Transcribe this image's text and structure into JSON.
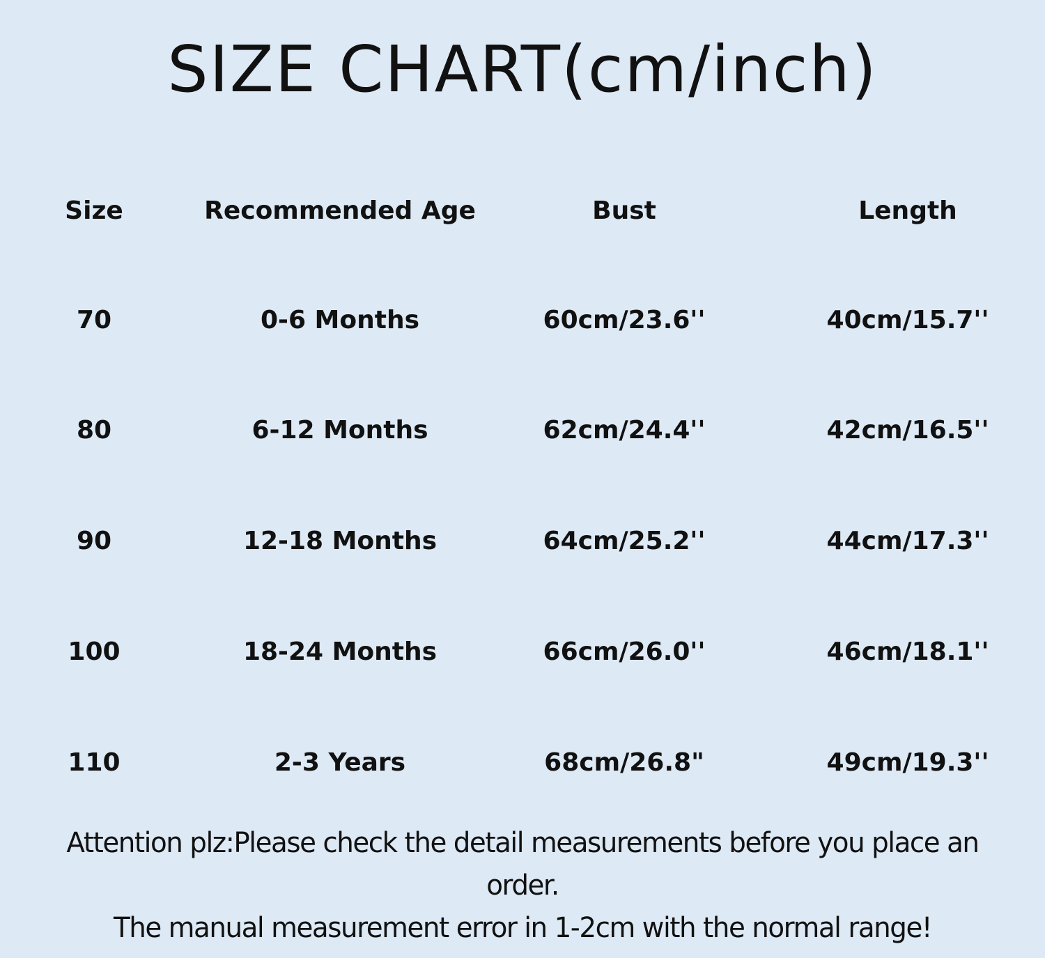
{
  "title": "SIZE CHART(cm/inch)",
  "table": {
    "headers": [
      "Size",
      "Recommended Age",
      "Bust",
      "Length"
    ],
    "rows": [
      [
        "70",
        "0-6 Months",
        "60cm/23.6''",
        "40cm/15.7''"
      ],
      [
        "80",
        "6-12 Months",
        "62cm/24.4''",
        "42cm/16.5''"
      ],
      [
        "90",
        "12-18 Months",
        "64cm/25.2''",
        "44cm/17.3''"
      ],
      [
        "100",
        "18-24 Months",
        "66cm/26.0''",
        "46cm/18.1''"
      ],
      [
        "110",
        "2-3 Years",
        "68cm/26.8\"",
        "49cm/19.3''"
      ]
    ]
  },
  "notes": {
    "line1": "Attention plz:Please check the detail measurements before you place an",
    "line2": "order.",
    "line3": "The manual measurement error in 1-2cm with the normal range!"
  },
  "colors": {
    "background": "#dde9f5",
    "text": "#111111"
  }
}
